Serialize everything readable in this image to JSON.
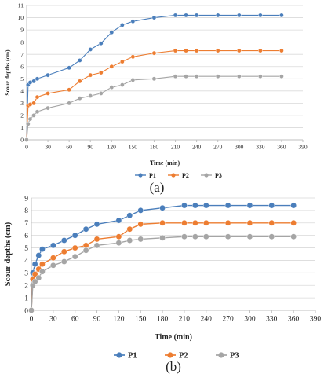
{
  "chart_data": [
    {
      "type": "line",
      "panel_label": "(a)",
      "xlabel": "Time (min)",
      "ylabel": "Scour depths (cm)",
      "xlim": [
        0,
        390
      ],
      "ylim": [
        0,
        11
      ],
      "xticks": [
        0,
        30,
        60,
        90,
        120,
        150,
        180,
        210,
        240,
        270,
        300,
        330,
        360,
        390
      ],
      "yticks": [
        0,
        1,
        2,
        3,
        4,
        5,
        6,
        7,
        8,
        9,
        10,
        11
      ],
      "grid": "horizontal",
      "legend_position": "bottom-center",
      "series": [
        {
          "name": "P1",
          "color": "#4a7ebb",
          "x": [
            0,
            2,
            5,
            10,
            15,
            30,
            60,
            75,
            90,
            105,
            120,
            135,
            150,
            180,
            210,
            225,
            240,
            270,
            300,
            330,
            360
          ],
          "y": [
            0,
            4.5,
            4.7,
            4.8,
            5.0,
            5.3,
            5.9,
            6.5,
            7.4,
            7.9,
            8.8,
            9.4,
            9.7,
            10.0,
            10.2,
            10.2,
            10.2,
            10.2,
            10.2,
            10.2,
            10.2
          ]
        },
        {
          "name": "P2",
          "color": "#ed7d31",
          "x": [
            0,
            2,
            5,
            10,
            15,
            30,
            60,
            75,
            90,
            105,
            120,
            135,
            150,
            180,
            210,
            225,
            240,
            270,
            300,
            330,
            360
          ],
          "y": [
            0,
            2.8,
            2.9,
            3.0,
            3.5,
            3.8,
            4.1,
            4.8,
            5.3,
            5.5,
            6.0,
            6.4,
            6.8,
            7.1,
            7.3,
            7.3,
            7.3,
            7.3,
            7.3,
            7.3,
            7.3
          ]
        },
        {
          "name": "P3",
          "color": "#a5a5a5",
          "x": [
            0,
            2,
            5,
            10,
            15,
            30,
            60,
            75,
            90,
            105,
            120,
            135,
            150,
            180,
            210,
            225,
            240,
            270,
            300,
            330,
            360
          ],
          "y": [
            0,
            1.3,
            1.7,
            2.0,
            2.3,
            2.6,
            3.0,
            3.4,
            3.6,
            3.8,
            4.3,
            4.5,
            4.9,
            5.0,
            5.2,
            5.2,
            5.2,
            5.2,
            5.2,
            5.2,
            5.2
          ]
        }
      ]
    },
    {
      "type": "line",
      "panel_label": "(b)",
      "xlabel": "Time (min)",
      "ylabel": "Scour depths (cm)",
      "xlim": [
        0,
        390
      ],
      "ylim": [
        0,
        9
      ],
      "xticks": [
        0,
        30,
        60,
        90,
        120,
        150,
        180,
        210,
        240,
        270,
        300,
        330,
        360,
        390
      ],
      "yticks": [
        0,
        1,
        2,
        3,
        4,
        5,
        6,
        7,
        8,
        9
      ],
      "grid": "horizontal",
      "legend_position": "bottom-center",
      "series": [
        {
          "name": "P1",
          "color": "#4a7ebb",
          "x": [
            0,
            2,
            5,
            10,
            15,
            30,
            45,
            60,
            75,
            90,
            120,
            135,
            150,
            180,
            210,
            225,
            240,
            270,
            300,
            330,
            360
          ],
          "y": [
            0,
            3.0,
            3.7,
            4.4,
            4.9,
            5.2,
            5.6,
            6.0,
            6.5,
            6.9,
            7.2,
            7.6,
            8.0,
            8.2,
            8.4,
            8.4,
            8.4,
            8.4,
            8.4,
            8.4,
            8.4
          ]
        },
        {
          "name": "P2",
          "color": "#ed7d31",
          "x": [
            0,
            2,
            5,
            10,
            15,
            30,
            45,
            60,
            75,
            90,
            120,
            135,
            150,
            180,
            210,
            225,
            240,
            270,
            300,
            330,
            360
          ],
          "y": [
            0,
            2.5,
            2.9,
            3.3,
            3.7,
            4.2,
            4.7,
            5.0,
            5.2,
            5.7,
            5.9,
            6.5,
            6.9,
            7.0,
            7.0,
            7.0,
            7.0,
            7.0,
            7.0,
            7.0,
            7.0
          ]
        },
        {
          "name": "P3",
          "color": "#a5a5a5",
          "x": [
            0,
            2,
            5,
            10,
            15,
            30,
            45,
            60,
            75,
            90,
            120,
            135,
            150,
            180,
            210,
            225,
            240,
            270,
            300,
            330,
            360
          ],
          "y": [
            0,
            2.0,
            2.3,
            2.6,
            3.1,
            3.6,
            3.9,
            4.3,
            4.8,
            5.2,
            5.4,
            5.6,
            5.7,
            5.8,
            5.9,
            5.9,
            5.9,
            5.9,
            5.9,
            5.9,
            5.9
          ]
        }
      ]
    }
  ]
}
